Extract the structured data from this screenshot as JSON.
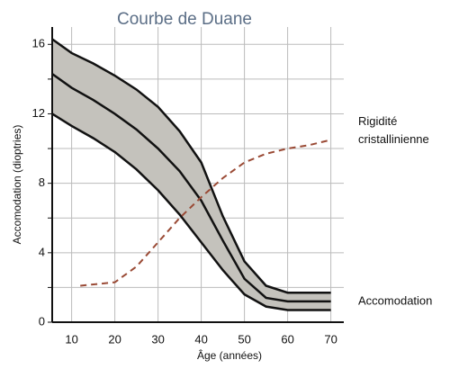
{
  "chart_data": {
    "type": "line",
    "title": "Courbe de Duane",
    "x_label": "Âge (années)",
    "y_label": "Accomodation (dioptries)",
    "xlim": [
      5.5,
      73
    ],
    "ylim": [
      0,
      17
    ],
    "xticks": [
      10,
      20,
      30,
      40,
      50,
      60,
      70
    ],
    "yticks": [
      0,
      4,
      8,
      12,
      16
    ],
    "minor_yticks": [
      2,
      6,
      10,
      14
    ],
    "grid": true,
    "fill_between": [
      0,
      2
    ],
    "fill_color": "#c4c2bc",
    "series": [
      {
        "name": "upper",
        "color": "#111111",
        "dashed": false,
        "x": [
          5.5,
          10,
          15,
          20,
          25,
          30,
          35,
          40,
          45,
          50,
          55,
          60,
          65,
          70
        ],
        "values": [
          16.3,
          15.5,
          14.9,
          14.2,
          13.4,
          12.4,
          11.0,
          9.2,
          6.1,
          3.5,
          2.1,
          1.7,
          1.7,
          1.7
        ]
      },
      {
        "name": "mean",
        "color": "#111111",
        "dashed": false,
        "x": [
          5.5,
          10,
          15,
          20,
          25,
          30,
          35,
          40,
          45,
          50,
          55,
          60,
          65,
          70
        ],
        "values": [
          14.3,
          13.5,
          12.8,
          12.0,
          11.1,
          10.0,
          8.7,
          7.0,
          4.7,
          2.5,
          1.4,
          1.2,
          1.2,
          1.2
        ]
      },
      {
        "name": "lower",
        "color": "#111111",
        "dashed": false,
        "x": [
          5.5,
          10,
          15,
          20,
          25,
          30,
          35,
          40,
          45,
          50,
          55,
          60,
          65,
          70
        ],
        "values": [
          12.0,
          11.3,
          10.6,
          9.8,
          8.8,
          7.6,
          6.2,
          4.6,
          3.0,
          1.6,
          0.9,
          0.7,
          0.7,
          0.7
        ]
      },
      {
        "name": "rigidity",
        "color": "#9a4a35",
        "dashed": true,
        "x": [
          12,
          20,
          25,
          30,
          35,
          40,
          45,
          50,
          55,
          60,
          65,
          70
        ],
        "values": [
          2.1,
          2.3,
          3.2,
          4.6,
          6.0,
          7.2,
          8.3,
          9.2,
          9.7,
          10.0,
          10.2,
          10.5
        ]
      }
    ],
    "annotations": [
      {
        "lines": [
          "Rigidité",
          "cristallinienne"
        ],
        "y": 11
      },
      {
        "lines": [
          "Accomodation"
        ],
        "y": 1.2
      }
    ]
  }
}
